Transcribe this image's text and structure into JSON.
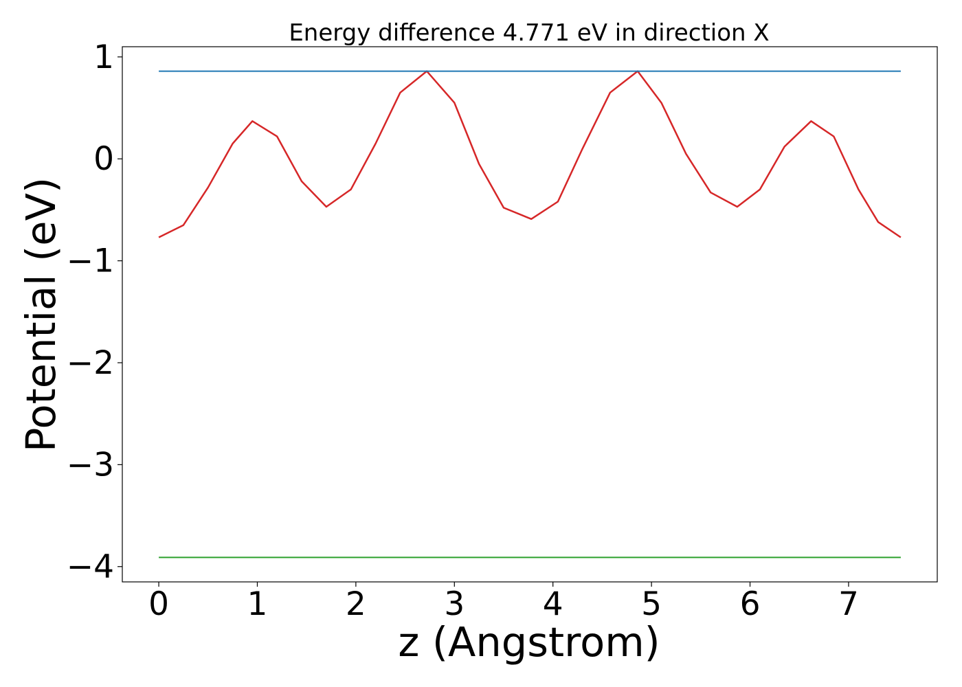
{
  "chart_data": {
    "type": "line",
    "title": "Energy difference 4.771 eV in direction X",
    "xlabel": "z (Angstrom)",
    "ylabel": "Potential (eV)",
    "xlim": [
      -0.37,
      7.9
    ],
    "ylim": [
      -4.15,
      1.1
    ],
    "x_ticks": [
      0,
      1,
      2,
      3,
      4,
      5,
      6,
      7
    ],
    "x_tick_labels": [
      "0",
      "1",
      "2",
      "3",
      "4",
      "5",
      "6",
      "7"
    ],
    "y_ticks": [
      1,
      0,
      -1,
      -2,
      -3,
      -4
    ],
    "y_tick_labels": [
      "1",
      "0",
      "−1",
      "−2",
      "−3",
      "−4"
    ],
    "grid": false,
    "legend": "none",
    "series": [
      {
        "color": "#d62728",
        "x": [
          0.0,
          0.25,
          0.5,
          0.75,
          0.95,
          1.2,
          1.45,
          1.7,
          1.95,
          2.2,
          2.45,
          2.72,
          3.0,
          3.25,
          3.5,
          3.78,
          4.05,
          4.3,
          4.58,
          4.86,
          5.1,
          5.35,
          5.6,
          5.87,
          6.1,
          6.35,
          6.62,
          6.85,
          7.1,
          7.3,
          7.53
        ],
        "y": [
          -0.77,
          -0.65,
          -0.28,
          0.15,
          0.37,
          0.22,
          -0.22,
          -0.47,
          -0.3,
          0.15,
          0.65,
          0.86,
          0.55,
          -0.05,
          -0.48,
          -0.59,
          -0.42,
          0.1,
          0.65,
          0.86,
          0.55,
          0.05,
          -0.33,
          -0.47,
          -0.3,
          0.12,
          0.37,
          0.22,
          -0.3,
          -0.62,
          -0.77
        ]
      },
      {
        "color": "#1f77b4",
        "x": [
          0.0,
          7.53
        ],
        "y": [
          0.86,
          0.86
        ]
      },
      {
        "color": "#2ca02c",
        "x": [
          0.0,
          7.53
        ],
        "y": [
          -3.91,
          -3.91
        ]
      }
    ]
  }
}
